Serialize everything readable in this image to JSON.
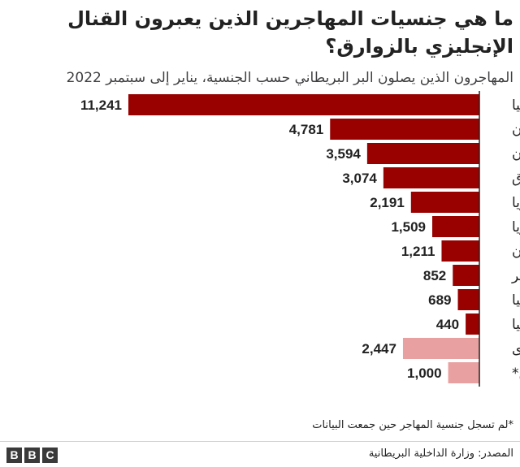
{
  "chart_data": {
    "type": "bar",
    "orientation": "horizontal",
    "title": "ما هي جنسيات المهاجرين الذين يعبرون القنال الإنجليزي بالزوارق؟",
    "subtitle": "المهاجرون الذين يصلون البر البريطاني حسب الجنسية، يناير إلى سبتمبر 2022",
    "categories": [
      "ألبانيا",
      "أفغانستان",
      "إيران",
      "العراق",
      "سوريا",
      "أريتريا",
      "السودان",
      "مصر",
      "تركيا",
      "إثيوبيا",
      "جنسيات أخرى",
      "غير مسجلين*"
    ],
    "values": [
      11241,
      4781,
      3594,
      3074,
      2191,
      1509,
      1211,
      852,
      689,
      440,
      2447,
      1000
    ],
    "value_labels": [
      "11,241",
      "4,781",
      "3,594",
      "3,074",
      "2,191",
      "1,509",
      "1,211",
      "852",
      "689",
      "440",
      "2,447",
      "1,000"
    ],
    "bar_colors": [
      "#990000",
      "#990000",
      "#990000",
      "#990000",
      "#990000",
      "#990000",
      "#990000",
      "#990000",
      "#990000",
      "#990000",
      "#e8a0a0",
      "#e8a0a0"
    ],
    "xlim": [
      0,
      11241
    ],
    "grid": false,
    "legend": "none"
  },
  "footnote": "*لم تسجل جنسية المهاجر حين جمعت البيانات",
  "source": "المصدر: وزارة الداخلية البريطانية",
  "branding": {
    "logo_letters": [
      "B",
      "B",
      "C"
    ]
  },
  "colors": {
    "main_bar": "#990000",
    "other_bar": "#e8a0a0",
    "axis_line": "#222222"
  }
}
